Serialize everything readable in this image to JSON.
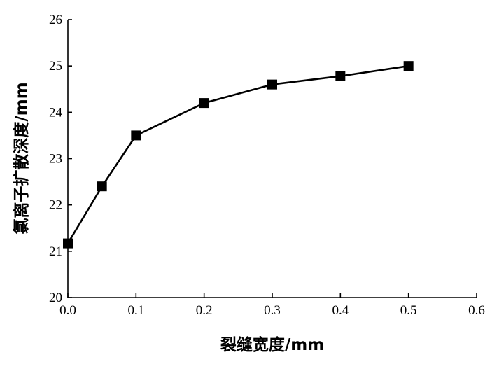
{
  "chart_data": {
    "type": "line",
    "title": "",
    "xlabel": "裂缝宽度/mm",
    "ylabel": "氯离子扩散深度/mm",
    "xlim": [
      0.0,
      0.6
    ],
    "ylim": [
      20,
      26
    ],
    "xticks": [
      "0.0",
      "0.1",
      "0.2",
      "0.3",
      "0.4",
      "0.5",
      "0.6"
    ],
    "yticks": [
      "20",
      "21",
      "22",
      "23",
      "24",
      "25",
      "26"
    ],
    "grid": false,
    "legend": "none",
    "marker": "square",
    "line_color": "#000000",
    "series": [
      {
        "x": [
          0.0,
          0.05,
          0.1,
          0.2,
          0.3,
          0.4,
          0.5
        ],
        "values": [
          21.17,
          22.4,
          23.5,
          24.2,
          24.6,
          24.78,
          25.0
        ]
      }
    ]
  }
}
